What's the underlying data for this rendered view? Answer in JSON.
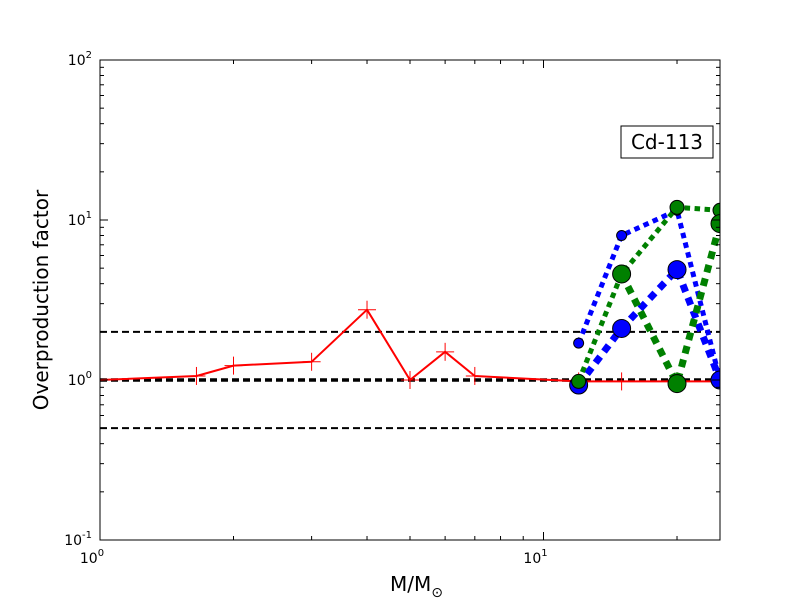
{
  "chart_data": {
    "type": "line",
    "title": "",
    "xlabel": "M/M",
    "xlabel_subscript": "⊙",
    "ylabel": "Overproduction factor",
    "xscale": "log",
    "yscale": "log",
    "xlim": [
      1,
      25
    ],
    "ylim": [
      0.1,
      100
    ],
    "grid": false,
    "x_ticks": [
      {
        "value": 1,
        "base": "10",
        "exp": "0"
      },
      {
        "value": 10,
        "base": "10",
        "exp": "1"
      }
    ],
    "y_ticks": [
      {
        "value": 0.1,
        "base": "10",
        "exp": "-1"
      },
      {
        "value": 1,
        "base": "10",
        "exp": "0"
      },
      {
        "value": 10,
        "base": "10",
        "exp": "1"
      },
      {
        "value": 100,
        "base": "10",
        "exp": "2"
      }
    ],
    "annotation": "Cd-113",
    "annotation_placement": "top-right",
    "reference_lines": [
      {
        "y": 2.0,
        "style": "dashed",
        "color": "#000000",
        "width": 2
      },
      {
        "y": 1.0,
        "style": "dashed",
        "color": "#000000",
        "width": 3.5
      },
      {
        "y": 0.5,
        "style": "dashed",
        "color": "#000000",
        "width": 2
      }
    ],
    "series": [
      {
        "color": "#ff0000",
        "line": "solid",
        "width": 2,
        "marker": "plus",
        "x": [
          1.0,
          1.65,
          2.0,
          3.0,
          4.0,
          5.0,
          6.0,
          7.0,
          12.0,
          15.0,
          20.0,
          25.0
        ],
        "y": [
          1.0,
          1.06,
          1.23,
          1.3,
          2.75,
          1.0,
          1.5,
          1.06,
          0.98,
          0.98,
          0.98,
          0.98
        ]
      },
      {
        "color": "#0000ff",
        "line": "dotted",
        "width": 5,
        "marker": "circle",
        "marker_size": 5,
        "x": [
          12.0,
          15.0,
          20.0,
          25.0
        ],
        "y": [
          1.7,
          8.0,
          11.5,
          1.0
        ]
      },
      {
        "color": "#0000ff",
        "line": "dotted",
        "width": 7,
        "marker": "circle",
        "marker_size": 9,
        "x": [
          12.0,
          15.0,
          20.0,
          25.0
        ],
        "y": [
          0.93,
          2.1,
          4.9,
          1.0
        ]
      },
      {
        "color": "#008000",
        "line": "dotted",
        "width": 5,
        "marker": "circle",
        "marker_size": 7,
        "x": [
          12.0,
          15.0,
          20.0,
          25.0
        ],
        "y": [
          0.98,
          4.6,
          12.0,
          11.5
        ]
      },
      {
        "color": "#008000",
        "line": "dotted",
        "width": 7,
        "marker": "circle",
        "marker_size": 9,
        "x": [
          15.0,
          20.0,
          25.0
        ],
        "y": [
          4.6,
          0.95,
          9.5
        ]
      }
    ]
  }
}
